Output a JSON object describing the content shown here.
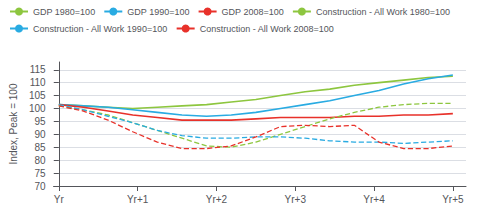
{
  "chart_data": {
    "type": "line",
    "x": [
      0,
      0.9375,
      1.875,
      2.8125,
      3.75,
      4.6875,
      5.625,
      6.5625,
      7.5,
      8.4375,
      9.375,
      10.3125,
      11.25,
      12.1875,
      13.125,
      14.0625,
      15
    ],
    "xlim": [
      -0.2,
      15.5
    ],
    "xticks": [
      {
        "value": 0,
        "label": "Yr"
      },
      {
        "value": 3,
        "label": "Yr+1"
      },
      {
        "value": 6,
        "label": "Yr+2"
      },
      {
        "value": 9,
        "label": "Yr+3"
      },
      {
        "value": 12,
        "label": "Yr+4"
      },
      {
        "value": 15,
        "label": "Yr+5"
      }
    ],
    "ylim": [
      70,
      118
    ],
    "yticks": [
      70,
      75,
      80,
      85,
      90,
      95,
      100,
      105,
      110,
      115
    ],
    "ylabel": "Index, Peak = 100",
    "grid": true,
    "legend": "upper left",
    "series": [
      {
        "name": "GDP 1980=100",
        "color": "#8dc63f",
        "line_style": "solid",
        "values": [
          101.5,
          101.0,
          100.5,
          100.0,
          100.5,
          101.0,
          101.5,
          102.5,
          103.5,
          105.0,
          106.5,
          107.5,
          109.0,
          110.0,
          111.0,
          112.0,
          112.5
        ]
      },
      {
        "name": "GDP 1990=100",
        "color": "#29abe2",
        "line_style": "solid",
        "values": [
          101.5,
          101.0,
          100.5,
          99.5,
          98.5,
          97.5,
          97.0,
          97.5,
          98.5,
          100.0,
          101.5,
          103.0,
          105.0,
          107.0,
          109.5,
          111.5,
          113.0
        ]
      },
      {
        "name": "GDP 2008=100",
        "color": "#e8312a",
        "line_style": "solid",
        "values": [
          101.5,
          100.5,
          99.0,
          97.5,
          96.5,
          95.5,
          95.5,
          95.5,
          96.0,
          96.5,
          96.5,
          96.5,
          97.0,
          97.0,
          97.5,
          97.5,
          98.0
        ]
      },
      {
        "name": "Construction - All Work 1980=100",
        "color": "#8dc63f",
        "line_style": "dashed",
        "values": [
          101.0,
          99.5,
          97.5,
          94.5,
          91.5,
          88.5,
          85.5,
          85.0,
          87.0,
          90.0,
          93.0,
          96.0,
          98.5,
          100.5,
          101.5,
          102.0,
          102.0
        ]
      },
      {
        "name": "Construction - All Work 1990=100",
        "color": "#29abe2",
        "line_style": "dashed",
        "values": [
          101.5,
          99.5,
          97.0,
          94.5,
          91.5,
          89.5,
          88.5,
          88.5,
          89.0,
          89.0,
          88.5,
          87.5,
          87.0,
          87.0,
          86.5,
          87.0,
          87.5
        ]
      },
      {
        "name": "Construction - All Work 2008=100",
        "color": "#e8312a",
        "line_style": "dashed",
        "values": [
          101.0,
          99.0,
          95.5,
          91.0,
          87.0,
          84.5,
          84.5,
          85.5,
          89.0,
          93.0,
          93.5,
          93.0,
          93.5,
          87.0,
          84.5,
          84.5,
          85.5
        ]
      }
    ]
  }
}
